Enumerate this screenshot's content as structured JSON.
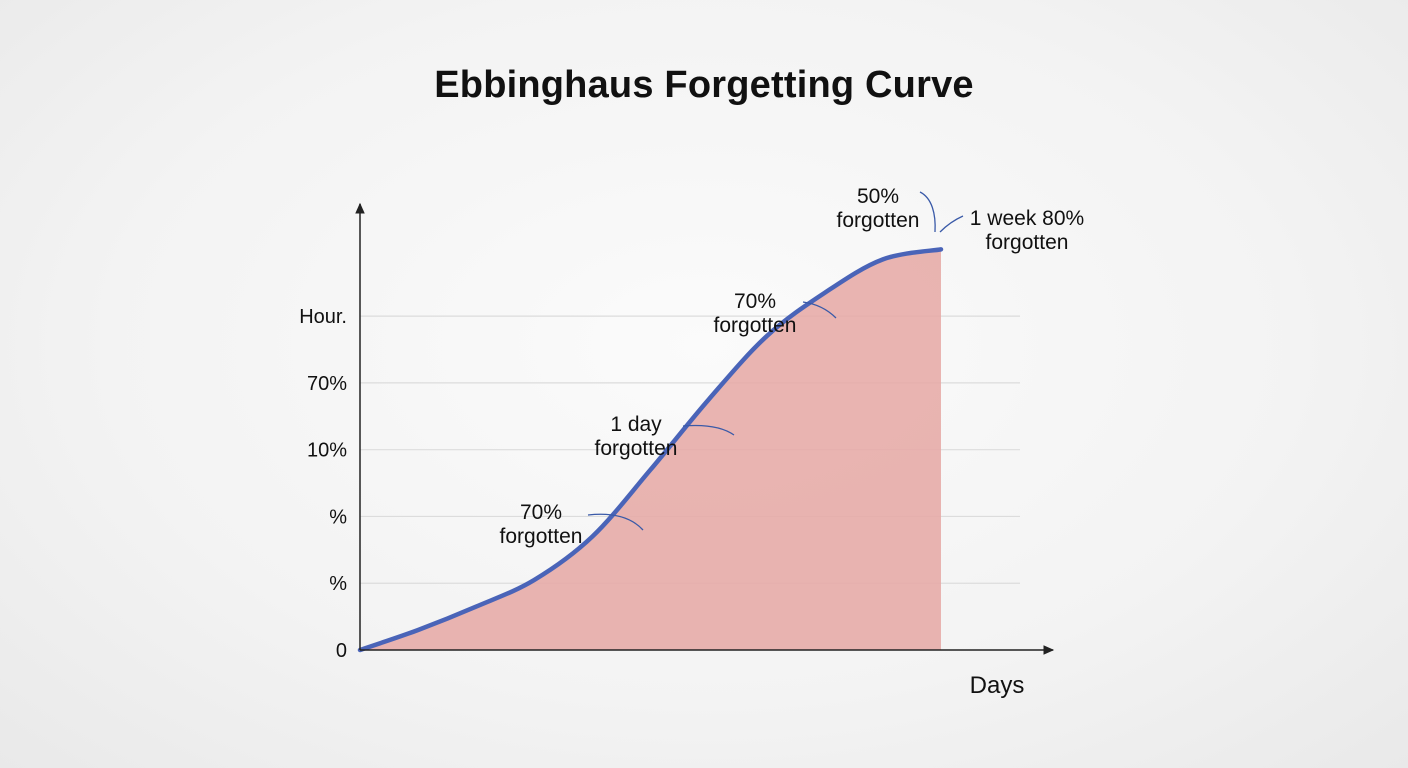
{
  "colors": {
    "line": "#4a64b8",
    "fill": "#e6aaa6",
    "grid": "#dcdcdc",
    "leader": "#3a5aa8"
  },
  "chart_data": {
    "type": "area",
    "title": "Ebbinghaus Forgetting Curve",
    "xlabel": "Days",
    "ylabel": "",
    "y_tick_labels": [
      "0",
      "%",
      "%",
      "10%",
      "70%",
      "Hour."
    ],
    "y_tick_values": [
      0,
      1,
      2,
      3,
      4,
      5
    ],
    "ylim": [
      0,
      6.2
    ],
    "xlim": [
      0,
      10
    ],
    "grid": true,
    "legend": "none",
    "series": [
      {
        "x": [
          0,
          1,
          2,
          3,
          4,
          5,
          6,
          7,
          8,
          9,
          10
        ],
        "y": [
          0,
          0.3,
          0.65,
          1.05,
          1.7,
          2.7,
          3.75,
          4.7,
          5.35,
          5.85,
          6.0
        ]
      }
    ],
    "annotations": [
      {
        "lines": [
          "70%",
          "forgotten"
        ],
        "x": 4.9,
        "y": 1.75
      },
      {
        "lines": [
          "1 day",
          "forgotten"
        ],
        "x": 6.5,
        "y": 3.1
      },
      {
        "lines": [
          "70%",
          "forgotten"
        ],
        "x": 8.2,
        "y": 4.8
      },
      {
        "lines": [
          "50%",
          "forgotten"
        ],
        "x": 9.7,
        "y": 6.0
      },
      {
        "lines": [
          "1 week 80%",
          "forgotten"
        ],
        "x": 10,
        "y": 6.0
      }
    ]
  }
}
